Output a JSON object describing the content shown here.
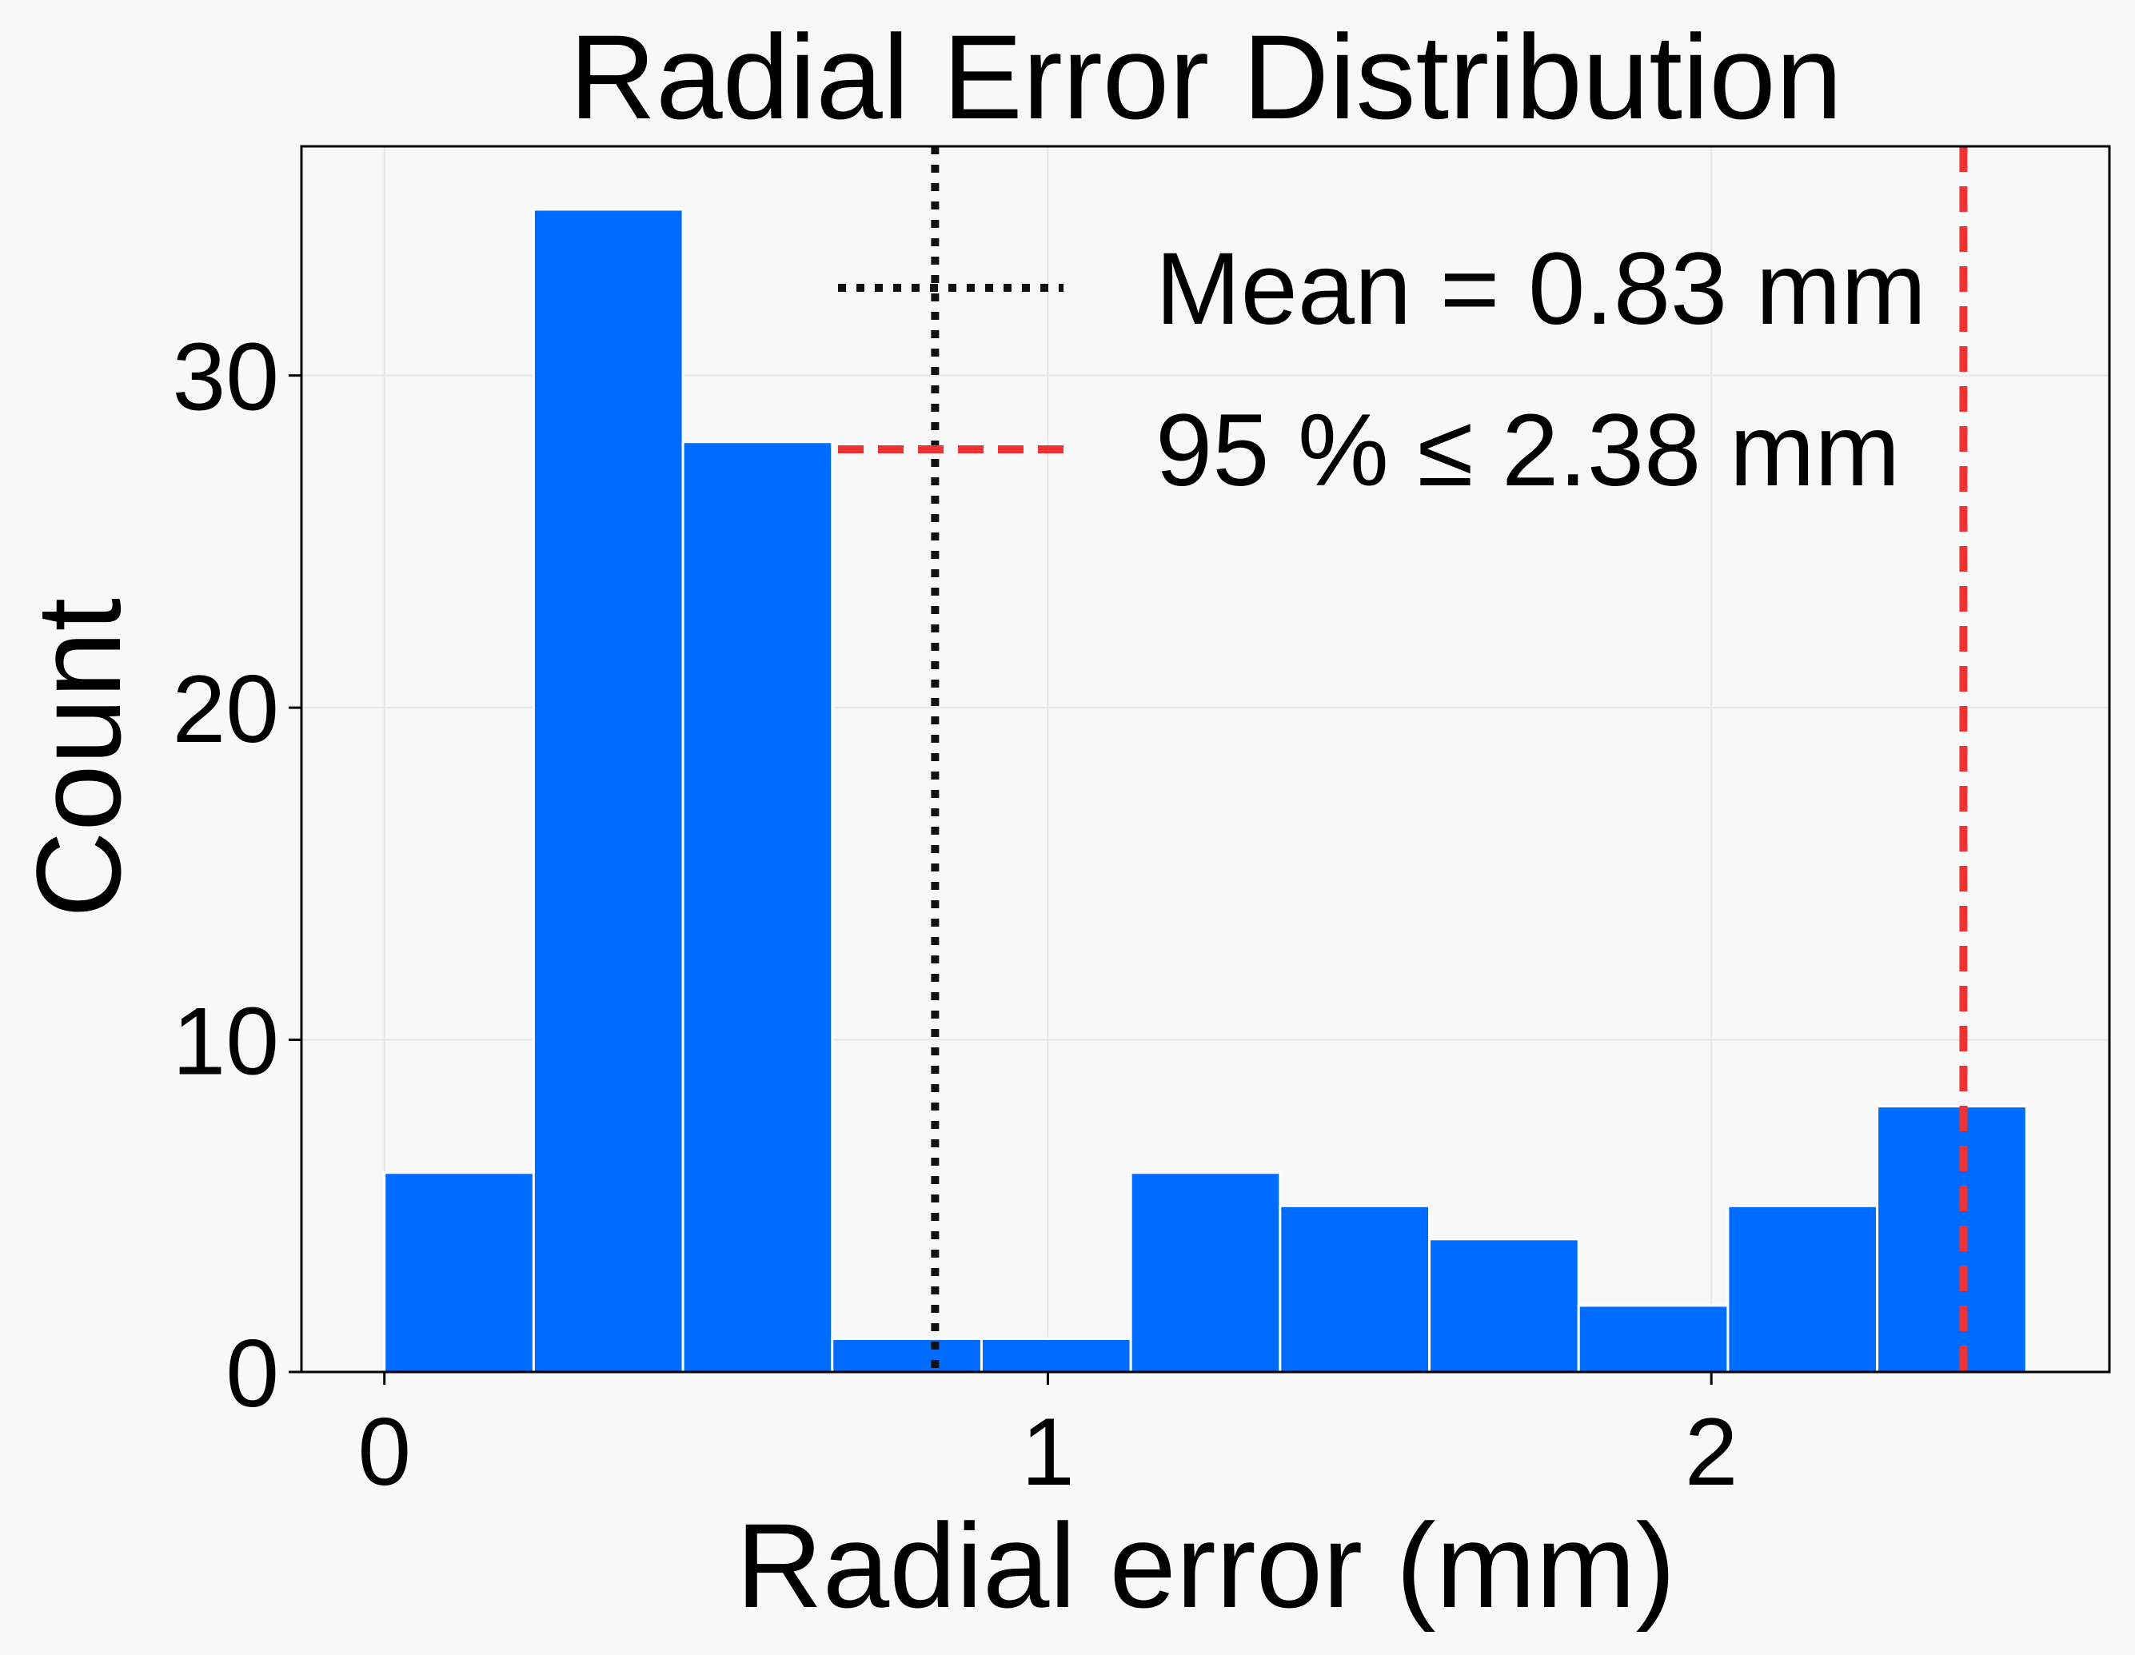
{
  "chart_data": {
    "type": "bar",
    "title": "Radial Error Distribution",
    "xlabel": "Radial error (mm)",
    "ylabel": "Count",
    "xlim": [
      -0.125,
      2.6
    ],
    "ylim": [
      0,
      36.9
    ],
    "xticks": [
      0,
      1,
      2
    ],
    "yticks": [
      0,
      10,
      20,
      30
    ],
    "grid": true,
    "legend_position": "top-right",
    "bar_color": "#006cff",
    "bins": [
      {
        "x0": 0.0,
        "x1": 0.225,
        "count": 6
      },
      {
        "x0": 0.225,
        "x1": 0.45,
        "count": 35
      },
      {
        "x0": 0.45,
        "x1": 0.675,
        "count": 28
      },
      {
        "x0": 0.675,
        "x1": 0.9,
        "count": 1
      },
      {
        "x0": 0.9,
        "x1": 1.125,
        "count": 1
      },
      {
        "x0": 1.125,
        "x1": 1.35,
        "count": 6
      },
      {
        "x0": 1.35,
        "x1": 1.575,
        "count": 5
      },
      {
        "x0": 1.575,
        "x1": 1.8,
        "count": 4
      },
      {
        "x0": 1.8,
        "x1": 2.025,
        "count": 2
      },
      {
        "x0": 2.025,
        "x1": 2.25,
        "count": 5
      },
      {
        "x0": 2.25,
        "x1": 2.475,
        "count": 8
      }
    ],
    "reference_lines": [
      {
        "label": "Mean = 0.83 mm",
        "x": 0.83,
        "style": "dotted",
        "color": "#111111"
      },
      {
        "label": "95 % ≤ 2.38 mm",
        "x": 2.38,
        "style": "dashed",
        "color": "#f03232"
      }
    ]
  }
}
